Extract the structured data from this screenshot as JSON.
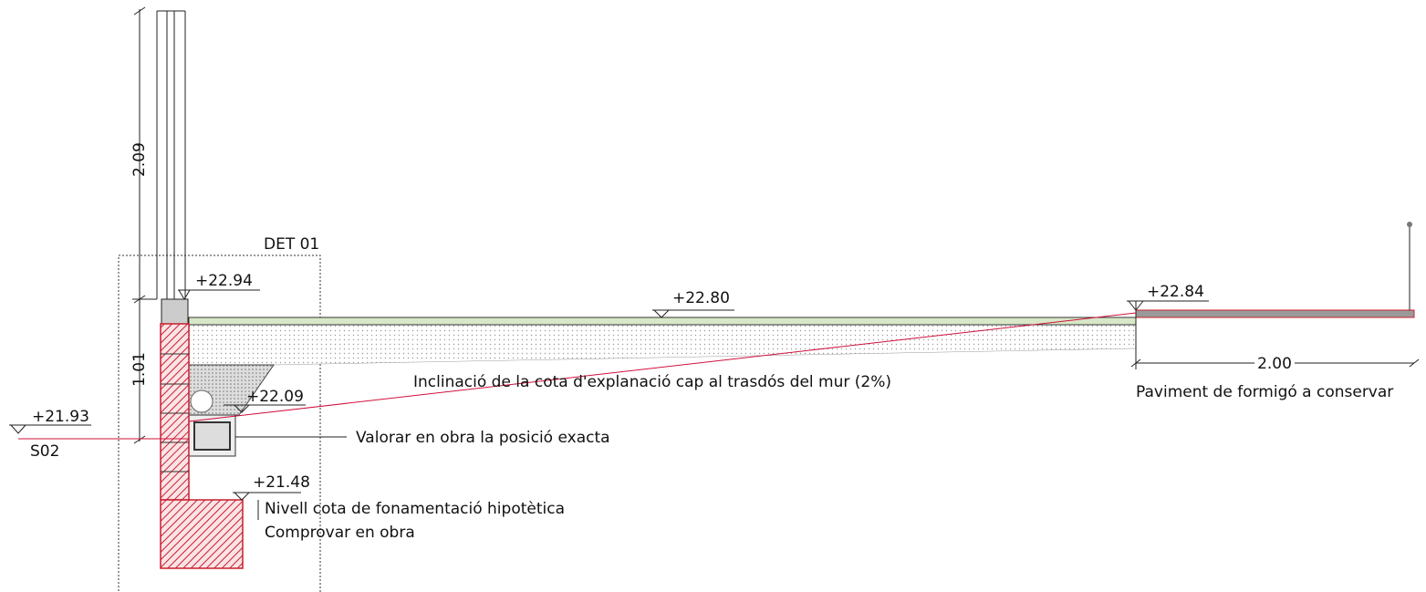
{
  "dimensions": {
    "upper_height": "2.09",
    "lower_height": "1.01",
    "pavement_width": "2.00"
  },
  "detail_label": "DET 01",
  "levels": {
    "wall_top": "+22.94",
    "slab": "+22.80",
    "pavement": "+22.84",
    "drain": "+22.09",
    "section_ref": "+21.93",
    "foundation": "+21.48"
  },
  "section_label": "S02",
  "notes": {
    "slope": "Inclinació de la cota d'explanació cap al trasdós del mur (2%)",
    "drain_position": "Valorar en obra la posició exacta",
    "foundation_line1": "Nivell cota de fonamentació hipotètica",
    "foundation_line2": "Comprovar en obra",
    "pavement": "Paviment de formigó a conservar"
  }
}
